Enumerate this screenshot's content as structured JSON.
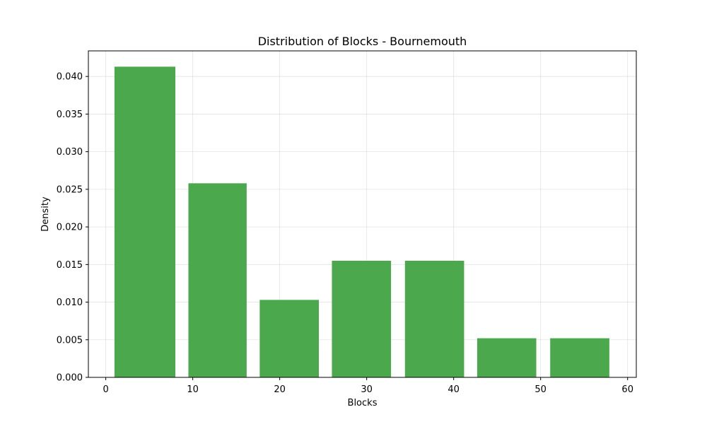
{
  "chart_data": {
    "type": "bar",
    "title": "Distribution of Blocks - Bournemouth",
    "xlabel": "Blocks",
    "ylabel": "Density",
    "bins": [
      {
        "x0": 1,
        "x1": 8,
        "value": 0.0413
      },
      {
        "x0": 9.5,
        "x1": 16.2,
        "value": 0.0258
      },
      {
        "x0": 17.7,
        "x1": 24.5,
        "value": 0.0103
      },
      {
        "x0": 26,
        "x1": 32.8,
        "value": 0.0155
      },
      {
        "x0": 34.4,
        "x1": 41.2,
        "value": 0.0155
      },
      {
        "x0": 42.7,
        "x1": 49.5,
        "value": 0.0052
      },
      {
        "x0": 51.1,
        "x1": 57.9,
        "value": 0.0052
      }
    ],
    "xlim": [
      -2,
      61
    ],
    "ylim": [
      0,
      0.0434
    ],
    "xticks": [
      0,
      10,
      20,
      30,
      40,
      50,
      60
    ],
    "xtick_labels": [
      "0",
      "10",
      "20",
      "30",
      "40",
      "50",
      "60"
    ],
    "yticks": [
      0,
      0.005,
      0.01,
      0.015,
      0.02,
      0.025,
      0.03,
      0.035,
      0.04
    ],
    "ytick_labels": [
      "0.000",
      "0.005",
      "0.010",
      "0.015",
      "0.020",
      "0.025",
      "0.030",
      "0.035",
      "0.040"
    ],
    "grid": true,
    "bar_color": "#4ca84c"
  }
}
